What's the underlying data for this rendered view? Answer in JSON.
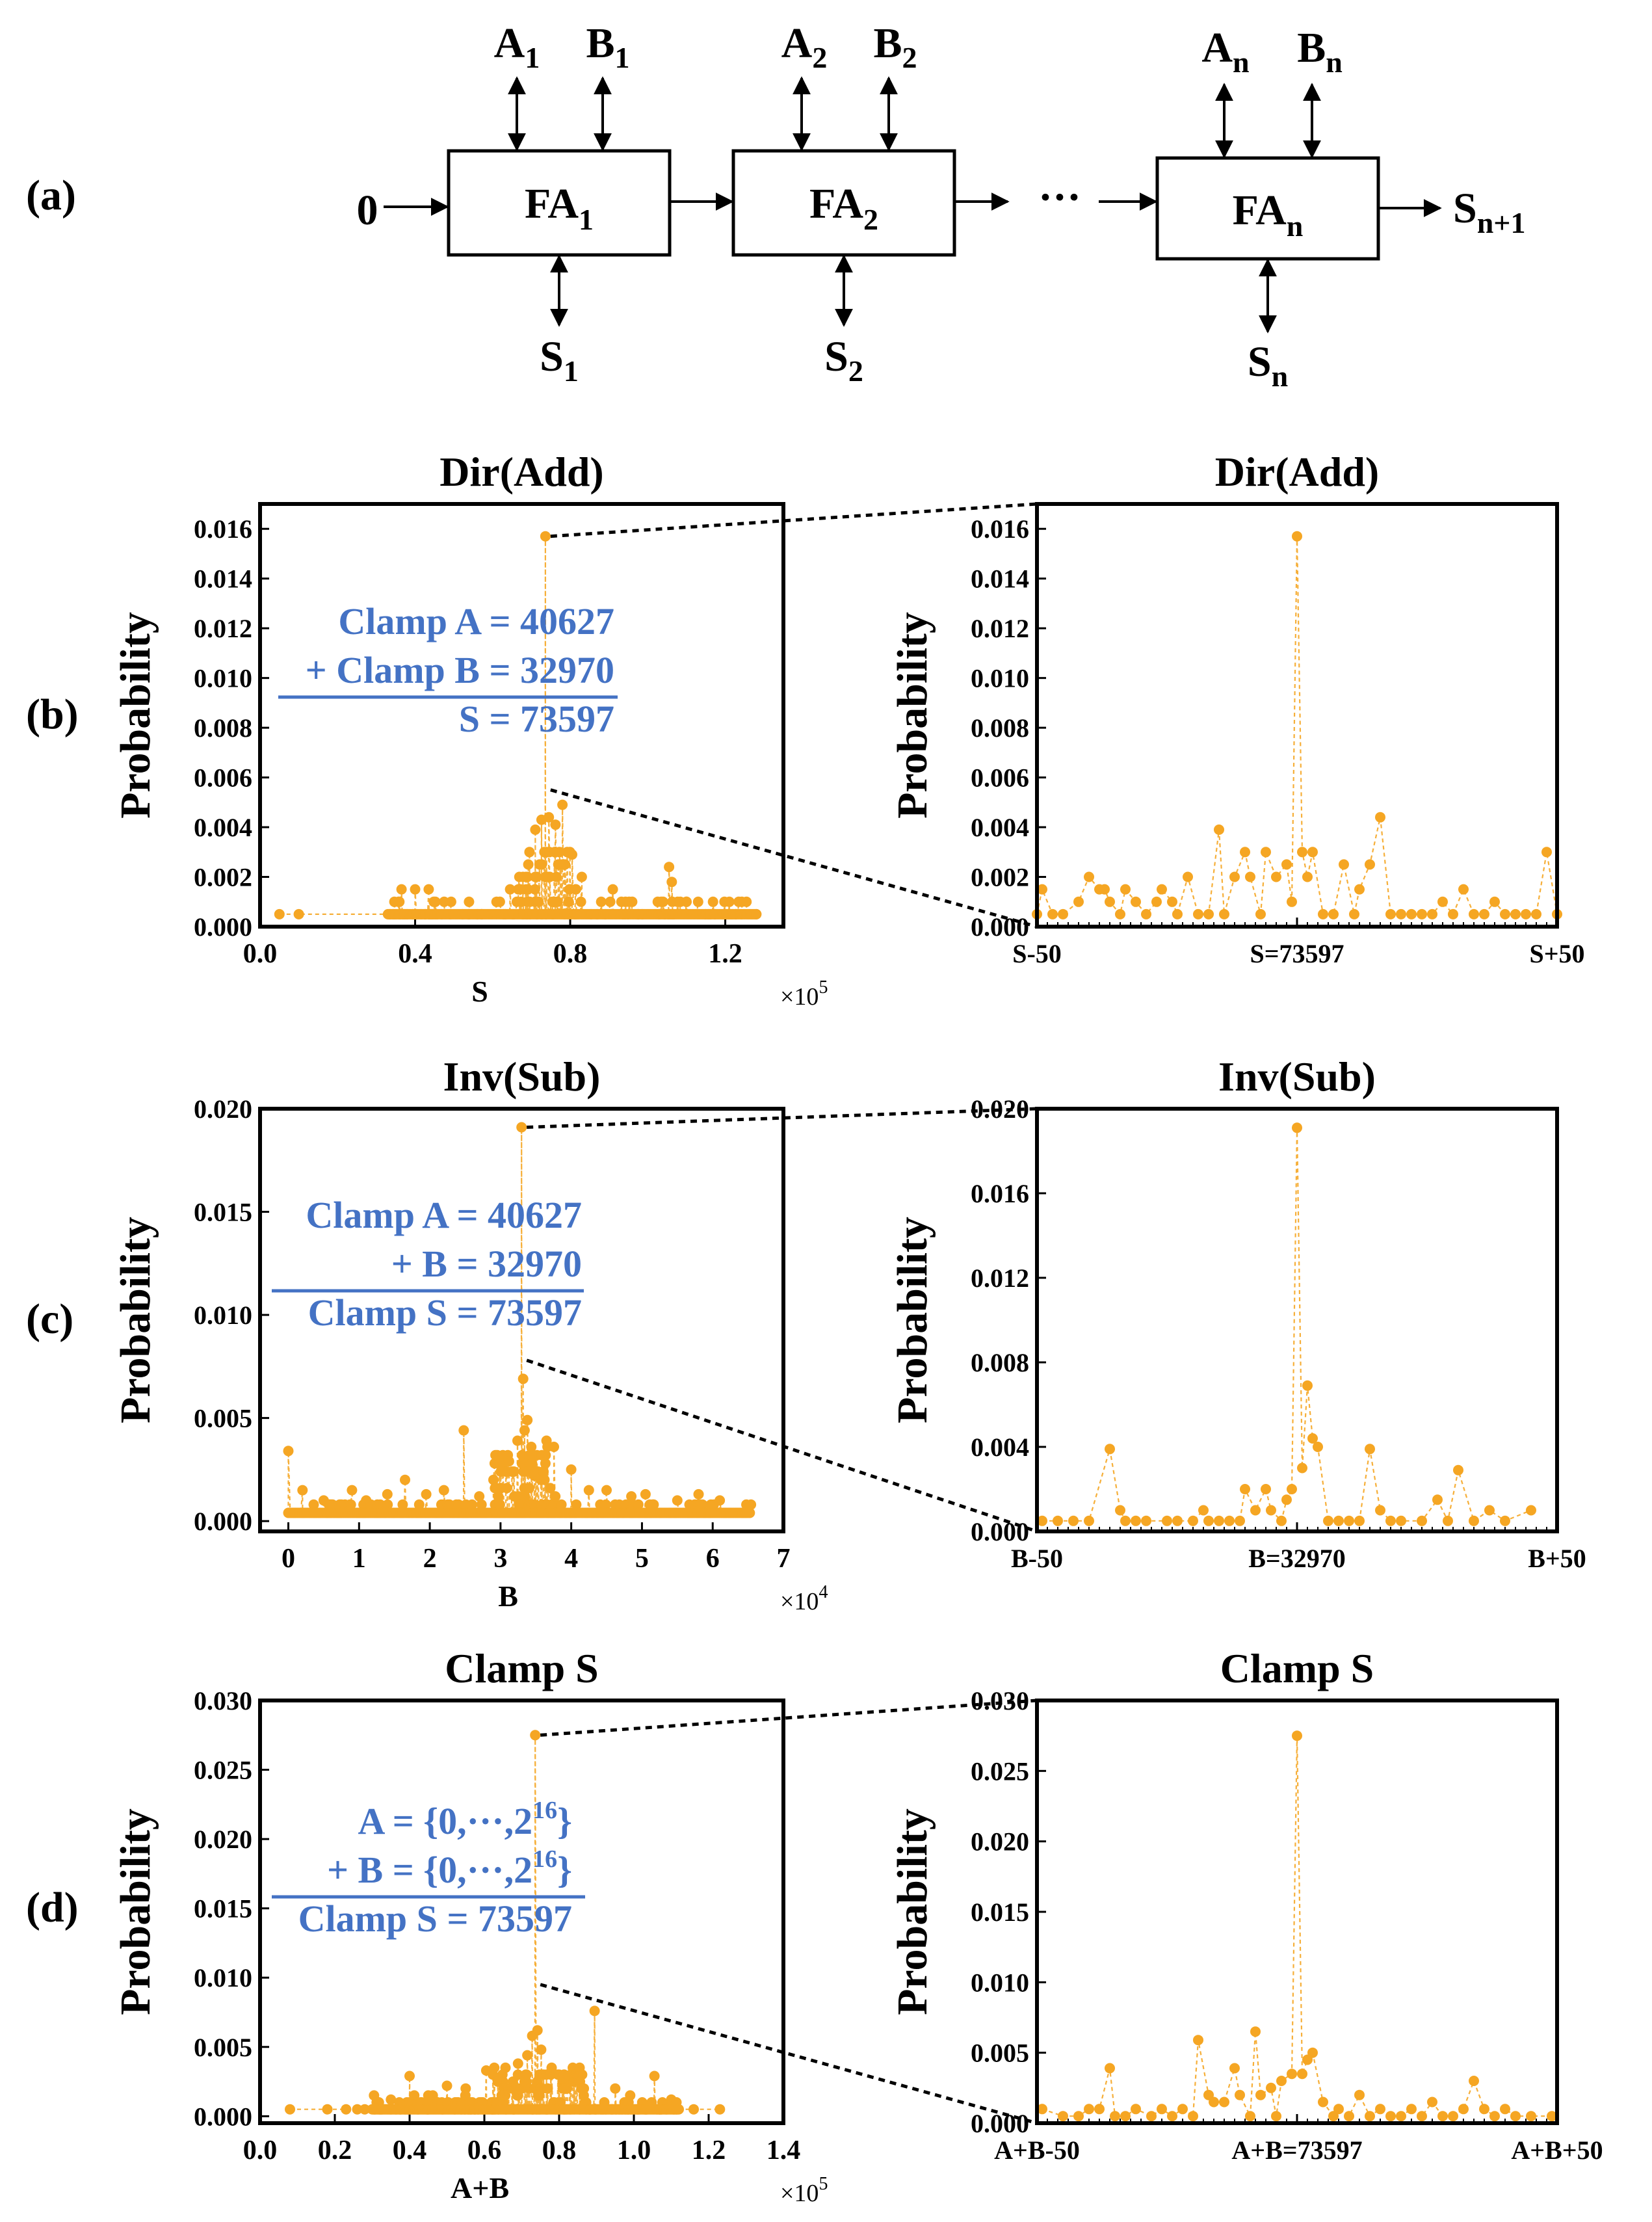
{
  "panel_labels": {
    "a": "(a)",
    "b": "(b)",
    "c": "(c)",
    "d": "(d)"
  },
  "adder": {
    "carry_in": "0",
    "blocks": [
      {
        "label": "FA",
        "sub": "1",
        "a": "A",
        "a_sub": "1",
        "b": "B",
        "b_sub": "1",
        "s": "S",
        "s_sub": "1"
      },
      {
        "label": "FA",
        "sub": "2",
        "a": "A",
        "a_sub": "2",
        "b": "B",
        "b_sub": "2",
        "s": "S",
        "s_sub": "2"
      },
      {
        "label": "FA",
        "sub": "n",
        "a": "A",
        "a_sub": "n",
        "b": "B",
        "b_sub": "n",
        "s": "S",
        "s_sub": "n"
      }
    ],
    "ellipsis": "···",
    "carry_out": "S",
    "carry_out_sub": "n+1"
  },
  "colors": {
    "marker": "#F5A623",
    "annotation": "#4472C4",
    "axis": "#000000"
  },
  "chart_data": [
    {
      "id": "b-main",
      "type": "scatter",
      "title": "Dir(Add)",
      "xlabel": "S",
      "ylabel": "Probability",
      "xlim": [
        0,
        135000
      ],
      "ylim": [
        0,
        0.017
      ],
      "xticks": [
        0,
        40000,
        80000,
        120000
      ],
      "xtick_labels": [
        "0.0",
        "0.4",
        "0.8",
        "1.2"
      ],
      "x_multiplier": "×10",
      "x_multiplier_exp": "5",
      "yticks": [
        0,
        0.002,
        0.004,
        0.006,
        0.008,
        0.01,
        0.012,
        0.014,
        0.016
      ],
      "ytick_labels": [
        "0.000",
        "0.002",
        "0.004",
        "0.006",
        "0.008",
        "0.010",
        "0.012",
        "0.014",
        "0.016"
      ],
      "peak": {
        "x": 73597,
        "y": 0.0157
      },
      "baseline": 0.0005,
      "spikes": [
        [
          73597,
          0.0157
        ],
        [
          78000,
          0.0049
        ],
        [
          74500,
          0.0044
        ],
        [
          72600,
          0.0043
        ],
        [
          76200,
          0.0041
        ],
        [
          71000,
          0.0039
        ],
        [
          69500,
          0.003
        ],
        [
          80500,
          0.0029
        ],
        [
          105500,
          0.0024
        ],
        [
          106200,
          0.0018
        ],
        [
          67800,
          0.002
        ],
        [
          83000,
          0.002
        ],
        [
          40000,
          0.0015
        ],
        [
          36500,
          0.0015
        ],
        [
          43500,
          0.0015
        ],
        [
          47500,
          0.001
        ],
        [
          91000,
          0.0015
        ],
        [
          96000,
          0.001
        ],
        [
          113000,
          0.001
        ],
        [
          61000,
          0.001
        ],
        [
          64500,
          0.0015
        ],
        [
          88000,
          0.001
        ],
        [
          110000,
          0.001
        ]
      ],
      "clusters": [
        {
          "from": 66000,
          "to": 82000,
          "n": 60,
          "max": 0.0032
        },
        {
          "from": 33000,
          "to": 50000,
          "n": 30,
          "max": 0.0012
        },
        {
          "from": 82000,
          "to": 128000,
          "n": 45,
          "max": 0.001
        },
        {
          "from": 52000,
          "to": 66000,
          "n": 12,
          "max": 0.001
        }
      ],
      "extra_points": [
        [
          5000,
          0.0005
        ],
        [
          10000,
          0.0005
        ],
        [
          128000,
          0.0005
        ]
      ],
      "annotation": [
        {
          "text": "Clamp A = 40627"
        },
        {
          "text": "+ Clamp B = 32970"
        },
        {
          "text": "S = 73597"
        }
      ]
    },
    {
      "id": "b-zoom",
      "type": "scatter",
      "title": "Dir(Add)",
      "xlabel": "",
      "ylabel": "Probability",
      "xlim": [
        -50,
        50
      ],
      "ylim": [
        0,
        0.017
      ],
      "xticks": [
        -50,
        0,
        50
      ],
      "xtick_labels": [
        "S-50",
        "S=73597",
        "S+50"
      ],
      "yticks": [
        0,
        0.002,
        0.004,
        0.006,
        0.008,
        0.01,
        0.012,
        0.014,
        0.016
      ],
      "ytick_labels": [
        "0.000",
        "0.002",
        "0.004",
        "0.006",
        "0.008",
        "0.010",
        "0.012",
        "0.014",
        "0.016"
      ],
      "x": [
        -50,
        -49,
        -47,
        -45,
        -42,
        -40,
        -38,
        -37,
        -36,
        -34,
        -33,
        -31,
        -29,
        -27,
        -26,
        -24,
        -23,
        -21,
        -19,
        -17,
        -15,
        -14,
        -12,
        -10,
        -9,
        -7,
        -6,
        -4,
        -2,
        -1,
        0,
        1,
        2,
        3,
        5,
        7,
        9,
        11,
        12,
        14,
        16,
        18,
        20,
        22,
        24,
        26,
        28,
        30,
        32,
        34,
        36,
        38,
        40,
        42,
        44,
        46,
        48,
        50
      ],
      "y": [
        0.0005,
        0.0015,
        0.0005,
        0.0005,
        0.001,
        0.002,
        0.0015,
        0.0015,
        0.001,
        0.0005,
        0.0015,
        0.001,
        0.0005,
        0.001,
        0.0015,
        0.001,
        0.0005,
        0.002,
        0.0005,
        0.0005,
        0.0039,
        0.0005,
        0.002,
        0.003,
        0.002,
        0.0005,
        0.003,
        0.002,
        0.0025,
        0.001,
        0.0157,
        0.003,
        0.002,
        0.003,
        0.0005,
        0.0005,
        0.0025,
        0.0005,
        0.0015,
        0.0025,
        0.0044,
        0.0005,
        0.0005,
        0.0005,
        0.0005,
        0.0005,
        0.001,
        0.0005,
        0.0015,
        0.0005,
        0.0005,
        0.001,
        0.0005,
        0.0005,
        0.0005,
        0.0005,
        0.003,
        0.0005
      ]
    },
    {
      "id": "c-main",
      "type": "scatter",
      "title": "Inv(Sub)",
      "xlabel": "B",
      "ylabel": "Probability",
      "xlim": [
        -4000,
        70000
      ],
      "ylim": [
        -0.0005,
        0.02
      ],
      "xticks": [
        0,
        10000,
        20000,
        30000,
        40000,
        50000,
        60000,
        70000
      ],
      "xtick_labels": [
        "0",
        "1",
        "2",
        "3",
        "4",
        "5",
        "6",
        "7"
      ],
      "x_multiplier": "×10",
      "x_multiplier_exp": "4",
      "yticks": [
        0,
        0.005,
        0.01,
        0.015,
        0.02
      ],
      "ytick_labels": [
        "0.000",
        "0.005",
        "0.010",
        "0.015",
        "0.020"
      ],
      "peak": {
        "x": 32970,
        "y": 0.0191
      },
      "baseline": 0.0004,
      "spikes": [
        [
          32970,
          0.0191
        ],
        [
          33200,
          0.0069
        ],
        [
          33800,
          0.0049
        ],
        [
          24800,
          0.0044
        ],
        [
          33400,
          0.0044
        ],
        [
          36500,
          0.0039
        ],
        [
          32400,
          0.0039
        ],
        [
          31200,
          0.0029
        ],
        [
          0,
          0.0034
        ],
        [
          40000,
          0.0025
        ],
        [
          34800,
          0.0022
        ],
        [
          29000,
          0.002
        ],
        [
          16500,
          0.002
        ],
        [
          9000,
          0.0015
        ],
        [
          2000,
          0.0015
        ],
        [
          11000,
          0.001
        ],
        [
          14000,
          0.0013
        ],
        [
          19500,
          0.0013
        ],
        [
          22000,
          0.0015
        ],
        [
          42500,
          0.0015
        ],
        [
          45000,
          0.0015
        ],
        [
          48500,
          0.0012
        ],
        [
          50500,
          0.0013
        ],
        [
          55000,
          0.001
        ],
        [
          58000,
          0.0013
        ],
        [
          61000,
          0.001
        ],
        [
          5000,
          0.001
        ],
        [
          27000,
          0.0012
        ]
      ],
      "clusters": [
        {
          "from": 29000,
          "to": 38000,
          "n": 70,
          "max": 0.0035
        },
        {
          "from": 0,
          "to": 65500,
          "n": 160,
          "max": 0.001
        }
      ],
      "extra_points": [],
      "annotation": [
        {
          "text": "Clamp A = 40627"
        },
        {
          "text": "+ B = 32970"
        },
        {
          "text": "Clamp S = 73597"
        }
      ]
    },
    {
      "id": "c-zoom",
      "type": "scatter",
      "title": "Inv(Sub)",
      "xlabel": "",
      "ylabel": "Probability",
      "xlim": [
        -50,
        50
      ],
      "ylim": [
        0,
        0.02
      ],
      "xticks": [
        -50,
        0,
        50
      ],
      "xtick_labels": [
        "B-50",
        "B=32970",
        "B+50"
      ],
      "yticks": [
        0,
        0.004,
        0.008,
        0.012,
        0.016,
        0.02
      ],
      "ytick_labels": [
        "0.000",
        "0.004",
        "0.008",
        "0.012",
        "0.016",
        "0.020"
      ],
      "x": [
        -49,
        -46,
        -43,
        -40,
        -36,
        -34,
        -33,
        -31,
        -29,
        -25,
        -23,
        -20,
        -18,
        -17,
        -15,
        -13,
        -11,
        -10,
        -8,
        -6,
        -5,
        -3,
        -2,
        -1,
        0,
        1,
        2,
        3,
        4,
        6,
        8,
        10,
        12,
        14,
        16,
        18,
        20,
        24,
        27,
        29,
        31,
        34,
        37,
        40,
        45
      ],
      "y": [
        0.0005,
        0.0005,
        0.0005,
        0.0005,
        0.0039,
        0.001,
        0.0005,
        0.0005,
        0.0005,
        0.0005,
        0.0005,
        0.0005,
        0.001,
        0.0005,
        0.0005,
        0.0005,
        0.0005,
        0.002,
        0.001,
        0.002,
        0.001,
        0.0005,
        0.0015,
        0.002,
        0.0191,
        0.003,
        0.0069,
        0.0044,
        0.004,
        0.0005,
        0.0005,
        0.0005,
        0.0005,
        0.0039,
        0.001,
        0.0005,
        0.0005,
        0.0005,
        0.0015,
        0.0005,
        0.0029,
        0.0005,
        0.001,
        0.0005,
        0.001
      ]
    },
    {
      "id": "d-main",
      "type": "scatter",
      "title": "Clamp S",
      "xlabel": "A+B",
      "ylabel": "Probability",
      "xlim": [
        0,
        140000
      ],
      "ylim": [
        -0.0005,
        0.03
      ],
      "xticks": [
        0,
        20000,
        40000,
        60000,
        80000,
        100000,
        120000,
        140000
      ],
      "xtick_labels": [
        "0.0",
        "0.2",
        "0.4",
        "0.6",
        "0.8",
        "1.0",
        "1.2",
        "1.4"
      ],
      "x_multiplier": "×10",
      "x_multiplier_exp": "5",
      "yticks": [
        0,
        0.005,
        0.01,
        0.015,
        0.02,
        0.025,
        0.03
      ],
      "ytick_labels": [
        "0.000",
        "0.005",
        "0.010",
        "0.015",
        "0.020",
        "0.025",
        "0.030"
      ],
      "peak": {
        "x": 73597,
        "y": 0.0275
      },
      "baseline": 0.0005,
      "spikes": [
        [
          73597,
          0.0275
        ],
        [
          89500,
          0.0076
        ],
        [
          74200,
          0.0062
        ],
        [
          72800,
          0.0058
        ],
        [
          75200,
          0.0048
        ],
        [
          71500,
          0.0044
        ],
        [
          69000,
          0.0038
        ],
        [
          78000,
          0.0035
        ],
        [
          60500,
          0.0033
        ],
        [
          40000,
          0.0029
        ],
        [
          105500,
          0.0029
        ],
        [
          84000,
          0.0028
        ],
        [
          50000,
          0.0022
        ],
        [
          55000,
          0.002
        ],
        [
          65000,
          0.0025
        ],
        [
          95000,
          0.002
        ],
        [
          45000,
          0.0015
        ],
        [
          35000,
          0.0012
        ],
        [
          99000,
          0.0015
        ],
        [
          110000,
          0.0012
        ]
      ],
      "clusters": [
        {
          "from": 62000,
          "to": 88000,
          "n": 90,
          "max": 0.0035
        },
        {
          "from": 30000,
          "to": 62000,
          "n": 55,
          "max": 0.0015
        },
        {
          "from": 88000,
          "to": 112000,
          "n": 40,
          "max": 0.0012
        }
      ],
      "extra_points": [
        [
          8000,
          0.0005
        ],
        [
          18000,
          0.0005
        ],
        [
          23000,
          0.0005
        ],
        [
          26000,
          0.0005
        ],
        [
          28000,
          0.0005
        ],
        [
          116000,
          0.0005
        ],
        [
          123000,
          0.0005
        ]
      ],
      "annotation": [
        {
          "text": "A = {0,···,2",
          "sup": "16",
          "end": "}"
        },
        {
          "text": "+ B = {0,···,2",
          "sup": "16",
          "end": "}"
        },
        {
          "text": "Clamp S = 73597"
        }
      ]
    },
    {
      "id": "d-zoom",
      "type": "scatter",
      "title": "Clamp S",
      "xlabel": "",
      "ylabel": "Probability",
      "xlim": [
        -50,
        50
      ],
      "ylim": [
        0,
        0.03
      ],
      "xticks": [
        -50,
        0,
        50
      ],
      "xtick_labels": [
        "A+B-50",
        "A+B=73597",
        "A+B+50"
      ],
      "yticks": [
        0,
        0.005,
        0.01,
        0.015,
        0.02,
        0.025,
        0.03
      ],
      "ytick_labels": [
        "0.000",
        "0.005",
        "0.010",
        "0.015",
        "0.020",
        "0.025",
        "0.030"
      ],
      "x": [
        -49,
        -45,
        -42,
        -40,
        -38,
        -36,
        -35,
        -33,
        -31,
        -28,
        -26,
        -24,
        -22,
        -20,
        -19,
        -17,
        -16,
        -14,
        -12,
        -11,
        -9,
        -8,
        -7,
        -5,
        -4,
        -3,
        -1,
        0,
        1,
        2,
        3,
        5,
        7,
        8,
        10,
        12,
        14,
        16,
        18,
        20,
        22,
        24,
        26,
        28,
        30,
        32,
        34,
        36,
        38,
        40,
        42,
        45,
        49
      ],
      "y": [
        0.001,
        0.0005,
        0.0005,
        0.001,
        0.001,
        0.0039,
        0.0005,
        0.0005,
        0.001,
        0.0005,
        0.001,
        0.0005,
        0.001,
        0.0005,
        0.0059,
        0.002,
        0.0015,
        0.0015,
        0.0039,
        0.002,
        0.0005,
        0.0065,
        0.002,
        0.0025,
        0.0005,
        0.003,
        0.0035,
        0.0275,
        0.0035,
        0.0045,
        0.005,
        0.0015,
        0.0005,
        0.001,
        0.0005,
        0.002,
        0.0005,
        0.001,
        0.0005,
        0.0005,
        0.001,
        0.0005,
        0.0015,
        0.0005,
        0.0005,
        0.001,
        0.003,
        0.001,
        0.0005,
        0.001,
        0.0005,
        0.0005,
        0.0005
      ]
    }
  ]
}
